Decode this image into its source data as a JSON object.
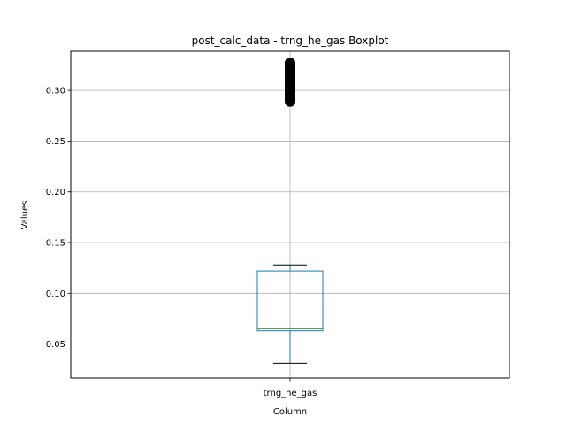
{
  "chart_data": {
    "type": "box",
    "title": "post_calc_data - trng_he_gas Boxplot",
    "xlabel": "Column",
    "ylabel": "Values",
    "categories": [
      "trng_he_gas"
    ],
    "ylim": [
      0.0165,
      0.3385
    ],
    "yticks": [
      0.05,
      0.1,
      0.15,
      0.2,
      0.25,
      0.3
    ],
    "ytick_labels": [
      "0.05",
      "0.10",
      "0.15",
      "0.20",
      "0.25",
      "0.30"
    ],
    "grid": true,
    "boxes": [
      {
        "name": "trng_he_gas",
        "whisker_low": 0.031,
        "q1": 0.063,
        "median": 0.065,
        "q3": 0.122,
        "whisker_high": 0.128,
        "outliers": [
          0.289,
          0.291,
          0.293,
          0.295,
          0.297,
          0.299,
          0.301,
          0.303,
          0.305,
          0.307,
          0.309,
          0.311,
          0.313,
          0.315,
          0.317,
          0.319,
          0.321,
          0.323,
          0.325,
          0.327
        ]
      }
    ],
    "colors": {
      "box": "#1f77b4",
      "median": "#2ca02c",
      "whisker": "#000000",
      "outlier": "#000000",
      "grid": "#b0b0b0"
    }
  }
}
